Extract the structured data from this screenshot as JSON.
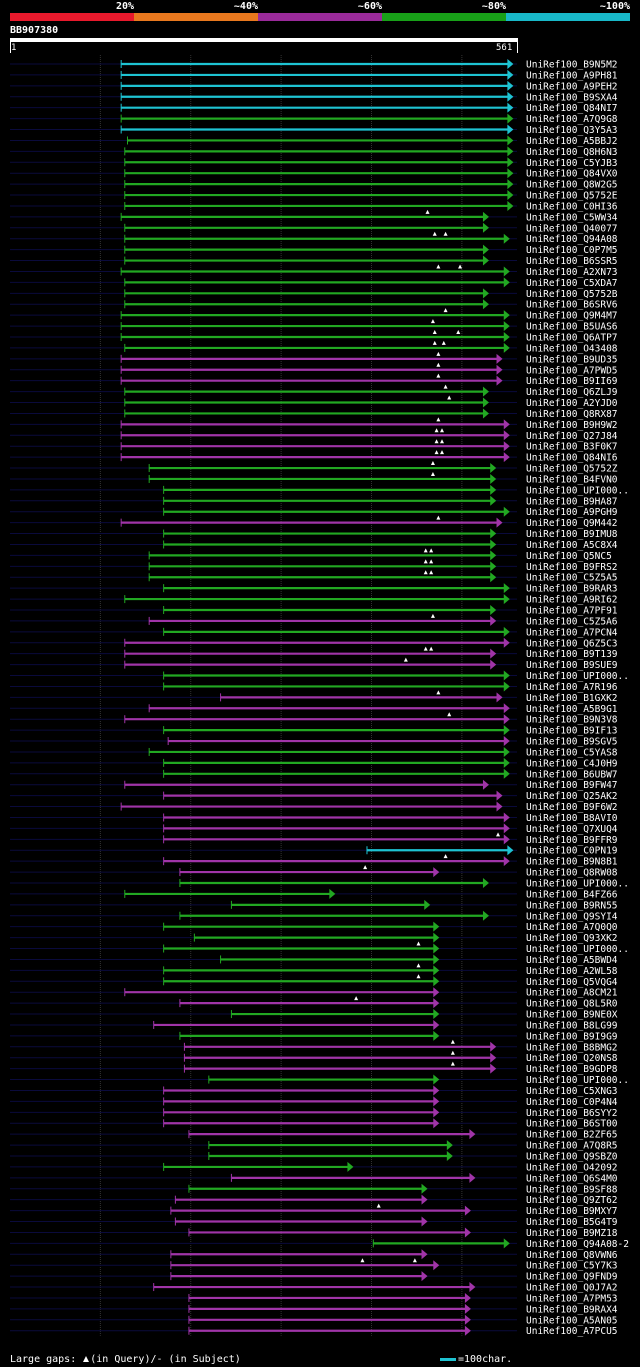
{
  "legend": {
    "labels": [
      "20%",
      "~40%",
      "~60%",
      "~80%",
      "~100%"
    ],
    "colors": [
      "#e8192c",
      "#e8781e",
      "#9a2a9a",
      "#18a018",
      "#18b8c8"
    ]
  },
  "query": {
    "id": "BB907380",
    "start": "1",
    "end": "561",
    "length": 561
  },
  "colors": {
    "cyan": "#1ec3d2",
    "green": "#22a822",
    "purple": "#a034a8",
    "track": "#0a0a3c",
    "grid": "#333333"
  },
  "hits": [
    {
      "name": "UniRef100_B9N5M2",
      "start": 123,
      "end": 557,
      "c": "cyan",
      "g": []
    },
    {
      "name": "UniRef100_A9PH81",
      "start": 123,
      "end": 557,
      "c": "cyan",
      "g": []
    },
    {
      "name": "UniRef100_A9PEH2",
      "start": 123,
      "end": 557,
      "c": "cyan",
      "g": []
    },
    {
      "name": "UniRef100_B9SXA4",
      "start": 123,
      "end": 557,
      "c": "cyan",
      "g": []
    },
    {
      "name": "UniRef100_Q84NI7",
      "start": 123,
      "end": 557,
      "c": "cyan",
      "g": []
    },
    {
      "name": "UniRef100_A7Q9G8",
      "start": 123,
      "end": 557,
      "c": "green",
      "g": []
    },
    {
      "name": "UniRef100_Q3Y5A3",
      "start": 123,
      "end": 557,
      "c": "cyan",
      "g": []
    },
    {
      "name": "UniRef100_A5BBJ2",
      "start": 130,
      "end": 557,
      "c": "green",
      "g": []
    },
    {
      "name": "UniRef100_Q8H6N3",
      "start": 127,
      "end": 557,
      "c": "green",
      "g": []
    },
    {
      "name": "UniRef100_C5YJB3",
      "start": 127,
      "end": 557,
      "c": "green",
      "g": []
    },
    {
      "name": "UniRef100_Q84VX0",
      "start": 127,
      "end": 557,
      "c": "green",
      "g": []
    },
    {
      "name": "UniRef100_Q8W2G5",
      "start": 127,
      "end": 557,
      "c": "green",
      "g": []
    },
    {
      "name": "UniRef100_Q5752E",
      "start": 127,
      "end": 557,
      "c": "green",
      "g": []
    },
    {
      "name": "UniRef100_C0HI36",
      "start": 127,
      "end": 557,
      "c": "green",
      "g": []
    },
    {
      "name": "UniRef100_C5WW34",
      "start": 123,
      "end": 530,
      "c": "green",
      "g": [
        462
      ]
    },
    {
      "name": "UniRef100_Q40077",
      "start": 127,
      "end": 530,
      "c": "green",
      "g": []
    },
    {
      "name": "UniRef100_Q94A08",
      "start": 127,
      "end": 553,
      "c": "green",
      "g": [
        470,
        482
      ]
    },
    {
      "name": "UniRef100_C0P7M5",
      "start": 127,
      "end": 530,
      "c": "green",
      "g": []
    },
    {
      "name": "UniRef100_B6SSR5",
      "start": 127,
      "end": 530,
      "c": "green",
      "g": []
    },
    {
      "name": "UniRef100_A2XN73",
      "start": 123,
      "end": 553,
      "c": "green",
      "g": [
        474,
        498
      ]
    },
    {
      "name": "UniRef100_C5XDA7",
      "start": 127,
      "end": 553,
      "c": "green",
      "g": []
    },
    {
      "name": "UniRef100_Q5752B",
      "start": 127,
      "end": 530,
      "c": "green",
      "g": []
    },
    {
      "name": "UniRef100_B6SRV6",
      "start": 127,
      "end": 530,
      "c": "green",
      "g": []
    },
    {
      "name": "UniRef100_Q9M4M7",
      "start": 123,
      "end": 553,
      "c": "green",
      "g": [
        482
      ]
    },
    {
      "name": "UniRef100_B5UAS6",
      "start": 123,
      "end": 553,
      "c": "green",
      "g": [
        468
      ]
    },
    {
      "name": "UniRef100_Q6ATP7",
      "start": 123,
      "end": 553,
      "c": "green",
      "g": [
        470,
        496
      ]
    },
    {
      "name": "UniRef100_O43408",
      "start": 127,
      "end": 553,
      "c": "green",
      "g": [
        470,
        480
      ]
    },
    {
      "name": "UniRef100_B9UD35",
      "start": 123,
      "end": 545,
      "c": "purple",
      "g": [
        474
      ]
    },
    {
      "name": "UniRef100_A7PWD5",
      "start": 123,
      "end": 545,
      "c": "purple",
      "g": [
        474
      ]
    },
    {
      "name": "UniRef100_B9II69",
      "start": 123,
      "end": 545,
      "c": "purple",
      "g": [
        474
      ]
    },
    {
      "name": "UniRef100_Q6ZLJ9",
      "start": 127,
      "end": 530,
      "c": "green",
      "g": [
        482
      ]
    },
    {
      "name": "UniRef100_A2YJD0",
      "start": 127,
      "end": 530,
      "c": "green",
      "g": [
        486
      ]
    },
    {
      "name": "UniRef100_Q8RX87",
      "start": 127,
      "end": 530,
      "c": "green",
      "g": []
    },
    {
      "name": "UniRef100_B9H9W2",
      "start": 123,
      "end": 553,
      "c": "purple",
      "g": [
        474
      ]
    },
    {
      "name": "UniRef100_Q27J84",
      "start": 123,
      "end": 553,
      "c": "purple",
      "g": [
        472,
        478
      ]
    },
    {
      "name": "UniRef100_B3F0K7",
      "start": 123,
      "end": 553,
      "c": "purple",
      "g": [
        472,
        478
      ]
    },
    {
      "name": "UniRef100_Q84NI6",
      "start": 123,
      "end": 553,
      "c": "purple",
      "g": [
        472,
        478
      ]
    },
    {
      "name": "UniRef100_Q5752Z",
      "start": 154,
      "end": 538,
      "c": "green",
      "g": [
        468
      ]
    },
    {
      "name": "UniRef100_B4FVN0",
      "start": 154,
      "end": 538,
      "c": "green",
      "g": [
        468
      ]
    },
    {
      "name": "UniRef100_UPI000..",
      "start": 170,
      "end": 538,
      "c": "green",
      "g": []
    },
    {
      "name": "UniRef100_B9HA87",
      "start": 170,
      "end": 538,
      "c": "green",
      "g": []
    },
    {
      "name": "UniRef100_A9PGH9",
      "start": 170,
      "end": 553,
      "c": "green",
      "g": []
    },
    {
      "name": "UniRef100_Q9M442",
      "start": 123,
      "end": 545,
      "c": "purple",
      "g": [
        474
      ]
    },
    {
      "name": "UniRef100_B9IMU8",
      "start": 170,
      "end": 538,
      "c": "green",
      "g": []
    },
    {
      "name": "UniRef100_A5C8X4",
      "start": 170,
      "end": 538,
      "c": "green",
      "g": []
    },
    {
      "name": "UniRef100_Q5NC5",
      "start": 154,
      "end": 538,
      "c": "green",
      "g": [
        460,
        466
      ]
    },
    {
      "name": "UniRef100_B9FRS2",
      "start": 154,
      "end": 538,
      "c": "green",
      "g": [
        460,
        466
      ]
    },
    {
      "name": "UniRef100_C5Z5A5",
      "start": 154,
      "end": 538,
      "c": "green",
      "g": [
        460,
        466
      ]
    },
    {
      "name": "UniRef100_B9RAR3",
      "start": 170,
      "end": 553,
      "c": "green",
      "g": []
    },
    {
      "name": "UniRef100_A9RI62",
      "start": 127,
      "end": 553,
      "c": "green",
      "g": []
    },
    {
      "name": "UniRef100_A7PF91",
      "start": 170,
      "end": 538,
      "c": "green",
      "g": []
    },
    {
      "name": "UniRef100_C5Z5A6",
      "start": 154,
      "end": 538,
      "c": "purple",
      "g": [
        468
      ]
    },
    {
      "name": "UniRef100_A7PCN4",
      "start": 170,
      "end": 553,
      "c": "green",
      "g": []
    },
    {
      "name": "UniRef100_Q6Z5C3",
      "start": 127,
      "end": 553,
      "c": "purple",
      "g": []
    },
    {
      "name": "UniRef100_B9T139",
      "start": 127,
      "end": 538,
      "c": "purple",
      "g": [
        460,
        466
      ]
    },
    {
      "name": "UniRef100_B9SUE9",
      "start": 127,
      "end": 538,
      "c": "purple",
      "g": [
        438
      ]
    },
    {
      "name": "UniRef100_UPI000..",
      "start": 170,
      "end": 553,
      "c": "green",
      "g": []
    },
    {
      "name": "UniRef100_A7R196",
      "start": 170,
      "end": 553,
      "c": "green",
      "g": []
    },
    {
      "name": "UniRef100_B1GXK2",
      "start": 233,
      "end": 545,
      "c": "purple",
      "g": [
        474
      ]
    },
    {
      "name": "UniRef100_A5B9G1",
      "start": 154,
      "end": 553,
      "c": "purple",
      "g": []
    },
    {
      "name": "UniRef100_B9N3V8",
      "start": 127,
      "end": 553,
      "c": "purple",
      "g": [
        486
      ]
    },
    {
      "name": "UniRef100_B9IF13",
      "start": 170,
      "end": 553,
      "c": "green",
      "g": []
    },
    {
      "name": "UniRef100_B9SGV5",
      "start": 175,
      "end": 553,
      "c": "purple",
      "g": []
    },
    {
      "name": "UniRef100_C5YAS8",
      "start": 154,
      "end": 553,
      "c": "green",
      "g": []
    },
    {
      "name": "UniRef100_C4J0H9",
      "start": 170,
      "end": 553,
      "c": "green",
      "g": []
    },
    {
      "name": "UniRef100_B6UBW7",
      "start": 170,
      "end": 553,
      "c": "green",
      "g": []
    },
    {
      "name": "UniRef100_B9FW47",
      "start": 127,
      "end": 530,
      "c": "purple",
      "g": []
    },
    {
      "name": "UniRef100_Q25AK2",
      "start": 170,
      "end": 545,
      "c": "purple",
      "g": []
    },
    {
      "name": "UniRef100_B9F6W2",
      "start": 123,
      "end": 545,
      "c": "purple",
      "g": []
    },
    {
      "name": "UniRef100_B8AVI0",
      "start": 170,
      "end": 553,
      "c": "purple",
      "g": []
    },
    {
      "name": "UniRef100_Q7XUQ4",
      "start": 170,
      "end": 553,
      "c": "purple",
      "g": []
    },
    {
      "name": "UniRef100_B9FFR9",
      "start": 170,
      "end": 553,
      "c": "purple",
      "g": [
        540
      ]
    },
    {
      "name": "UniRef100_C0PN19",
      "start": 395,
      "end": 557,
      "c": "cyan",
      "g": []
    },
    {
      "name": "UniRef100_B9N8B1",
      "start": 170,
      "end": 553,
      "c": "purple",
      "g": [
        482
      ]
    },
    {
      "name": "UniRef100_Q8RW08",
      "start": 188,
      "end": 475,
      "c": "purple",
      "g": [
        393
      ]
    },
    {
      "name": "UniRef100_UPI000..",
      "start": 188,
      "end": 530,
      "c": "green",
      "g": []
    },
    {
      "name": "UniRef100_B4FZ66",
      "start": 127,
      "end": 360,
      "c": "green",
      "g": []
    },
    {
      "name": "UniRef100_B9RN55",
      "start": 245,
      "end": 465,
      "c": "green",
      "g": []
    },
    {
      "name": "UniRef100_Q9SYI4",
      "start": 188,
      "end": 530,
      "c": "green",
      "g": []
    },
    {
      "name": "UniRef100_A7Q0Q0",
      "start": 170,
      "end": 475,
      "c": "green",
      "g": []
    },
    {
      "name": "UniRef100_Q93XK2",
      "start": 204,
      "end": 475,
      "c": "green",
      "g": []
    },
    {
      "name": "UniRef100_UPI000..",
      "start": 170,
      "end": 475,
      "c": "green",
      "g": [
        452
      ]
    },
    {
      "name": "UniRef100_A5BWD4",
      "start": 233,
      "end": 475,
      "c": "green",
      "g": []
    },
    {
      "name": "UniRef100_A2WL58",
      "start": 170,
      "end": 475,
      "c": "green",
      "g": [
        452
      ]
    },
    {
      "name": "UniRef100_Q5VQG4",
      "start": 170,
      "end": 475,
      "c": "green",
      "g": [
        452
      ]
    },
    {
      "name": "UniRef100_A8CM21",
      "start": 127,
      "end": 475,
      "c": "purple",
      "g": []
    },
    {
      "name": "UniRef100_Q8L5R0",
      "start": 188,
      "end": 475,
      "c": "purple",
      "g": [
        383
      ]
    },
    {
      "name": "UniRef100_B9NE0X",
      "start": 245,
      "end": 475,
      "c": "green",
      "g": []
    },
    {
      "name": "UniRef100_B8LG99",
      "start": 159,
      "end": 475,
      "c": "purple",
      "g": []
    },
    {
      "name": "UniRef100_B9I9G9",
      "start": 188,
      "end": 475,
      "c": "green",
      "g": []
    },
    {
      "name": "UniRef100_B8BMG2",
      "start": 193,
      "end": 538,
      "c": "purple",
      "g": [
        490
      ]
    },
    {
      "name": "UniRef100_Q20NS8",
      "start": 193,
      "end": 538,
      "c": "purple",
      "g": [
        490
      ]
    },
    {
      "name": "UniRef100_B9GDP8",
      "start": 193,
      "end": 538,
      "c": "purple",
      "g": [
        490
      ]
    },
    {
      "name": "UniRef100_UPI000..",
      "start": 220,
      "end": 475,
      "c": "green",
      "g": []
    },
    {
      "name": "UniRef100_C5XNG3",
      "start": 170,
      "end": 475,
      "c": "purple",
      "g": []
    },
    {
      "name": "UniRef100_C0P4N4",
      "start": 170,
      "end": 475,
      "c": "purple",
      "g": []
    },
    {
      "name": "UniRef100_B6SYY2",
      "start": 170,
      "end": 475,
      "c": "purple",
      "g": []
    },
    {
      "name": "UniRef100_B6ST00",
      "start": 170,
      "end": 475,
      "c": "purple",
      "g": []
    },
    {
      "name": "UniRef100_B2ZF65",
      "start": 198,
      "end": 515,
      "c": "purple",
      "g": []
    },
    {
      "name": "UniRef100_A7Q8R5",
      "start": 220,
      "end": 490,
      "c": "green",
      "g": []
    },
    {
      "name": "UniRef100_Q9SBZ0",
      "start": 220,
      "end": 490,
      "c": "green",
      "g": []
    },
    {
      "name": "UniRef100_O42092",
      "start": 170,
      "end": 380,
      "c": "green",
      "g": []
    },
    {
      "name": "UniRef100_Q6S4M0",
      "start": 245,
      "end": 515,
      "c": "purple",
      "g": []
    },
    {
      "name": "UniRef100_B9SF88",
      "start": 198,
      "end": 462,
      "c": "green",
      "g": []
    },
    {
      "name": "UniRef100_Q9ZT62",
      "start": 183,
      "end": 462,
      "c": "purple",
      "g": []
    },
    {
      "name": "UniRef100_B9MXY7",
      "start": 178,
      "end": 510,
      "c": "purple",
      "g": [
        408
      ]
    },
    {
      "name": "UniRef100_B5G4T9",
      "start": 183,
      "end": 462,
      "c": "purple",
      "g": []
    },
    {
      "name": "UniRef100_B9MZ18",
      "start": 198,
      "end": 510,
      "c": "purple",
      "g": []
    },
    {
      "name": "UniRef100_Q94A08-2",
      "start": 402,
      "end": 553,
      "c": "green",
      "g": []
    },
    {
      "name": "UniRef100_Q8VWN6",
      "start": 178,
      "end": 462,
      "c": "purple",
      "g": []
    },
    {
      "name": "UniRef100_C5Y7K3",
      "start": 178,
      "end": 475,
      "c": "purple",
      "g": [
        390,
        448
      ]
    },
    {
      "name": "UniRef100_Q9FND9",
      "start": 178,
      "end": 462,
      "c": "purple",
      "g": []
    },
    {
      "name": "UniRef100_Q0J7A2",
      "start": 159,
      "end": 515,
      "c": "purple",
      "g": []
    },
    {
      "name": "UniRef100_A7PM53",
      "start": 198,
      "end": 510,
      "c": "purple",
      "g": []
    },
    {
      "name": "UniRef100_B9RAX4",
      "start": 198,
      "end": 510,
      "c": "purple",
      "g": []
    },
    {
      "name": "UniRef100_A5AN05",
      "start": 198,
      "end": 510,
      "c": "purple",
      "g": []
    },
    {
      "name": "UniRef100_A7PCU5",
      "start": 198,
      "end": 510,
      "c": "purple",
      "g": []
    }
  ],
  "footer": {
    "large_gaps_label": "Large gaps:",
    "in_query": "(in Query)/",
    "dash": "-",
    "in_subject": " (in Subject)",
    "scale": "=100char."
  }
}
